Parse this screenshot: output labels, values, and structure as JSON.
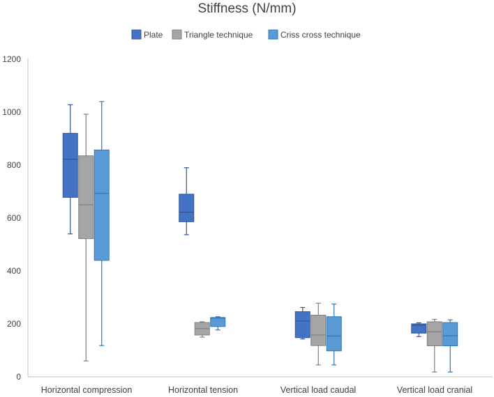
{
  "chart_data": {
    "type": "boxplot",
    "title": "Stiffness (N/mm)",
    "xlabel": "",
    "ylabel": "",
    "ylim": [
      0,
      1200
    ],
    "yticks": [
      0,
      200,
      400,
      600,
      800,
      1000,
      1200
    ],
    "grid": false,
    "legend_position": "top",
    "categories": [
      "Horizontal compression",
      "Horizontal tension",
      "Vertical load caudal",
      "Vertical load cranial"
    ],
    "series": [
      {
        "name": "Plate",
        "color": "#4472C4",
        "stroke": "#2F5597",
        "boxes": [
          {
            "min": 540,
            "q1": 678,
            "median": 822,
            "q3": 920,
            "max": 1028
          },
          {
            "min": 537,
            "q1": 586,
            "median": 622,
            "q3": 690,
            "max": 790
          },
          {
            "min": 143,
            "q1": 148,
            "median": 210,
            "q3": 246,
            "max": 262
          },
          {
            "min": 152,
            "q1": 165,
            "median": 195,
            "q3": 200,
            "max": 204
          }
        ]
      },
      {
        "name": "Triangle technique",
        "color": "#A5A5A5",
        "stroke": "#7F7F7F",
        "boxes": [
          {
            "min": 60,
            "q1": 522,
            "median": 650,
            "q3": 835,
            "max": 992
          },
          {
            "min": 150,
            "q1": 158,
            "median": 182,
            "q3": 205,
            "max": 208
          },
          {
            "min": 45,
            "q1": 118,
            "median": 158,
            "q3": 233,
            "max": 278
          },
          {
            "min": 18,
            "q1": 117,
            "median": 170,
            "q3": 208,
            "max": 217
          }
        ]
      },
      {
        "name": "Criss cross technique",
        "color": "#5B9BD5",
        "stroke": "#2E75B6",
        "boxes": [
          {
            "min": 118,
            "q1": 440,
            "median": 693,
            "q3": 857,
            "max": 1040
          },
          {
            "min": 177,
            "q1": 190,
            "median": 222,
            "q3": 224,
            "max": 227
          },
          {
            "min": 45,
            "q1": 98,
            "median": 154,
            "q3": 227,
            "max": 275
          },
          {
            "min": 18,
            "q1": 117,
            "median": 155,
            "q3": 205,
            "max": 215
          }
        ]
      }
    ]
  }
}
